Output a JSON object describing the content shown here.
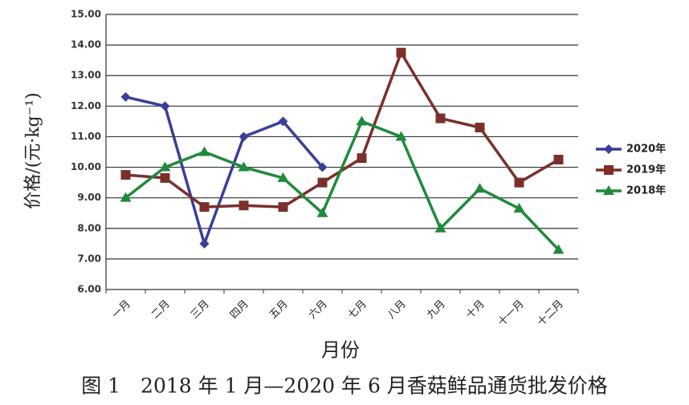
{
  "chart_data": {
    "type": "line",
    "ylabel": "价格/(元·kg⁻¹)",
    "xlabel": "月份",
    "caption": "图 1　2018 年 1 月—2020 年 6 月香菇鲜品通货批发价格",
    "categories": [
      "一月",
      "二月",
      "三月",
      "四月",
      "五月",
      "六月",
      "七月",
      "八月",
      "九月",
      "十月",
      "十一月",
      "十二月"
    ],
    "series": [
      {
        "name": "2020年",
        "color": "#3b3e98",
        "marker": "diamond",
        "values": [
          12.3,
          12.0,
          7.5,
          11.0,
          11.5,
          10.0,
          null,
          null,
          null,
          null,
          null,
          null
        ]
      },
      {
        "name": "2019年",
        "color": "#7b2f2b",
        "marker": "square",
        "values": [
          9.75,
          9.65,
          8.7,
          8.75,
          8.7,
          9.5,
          10.3,
          13.75,
          11.6,
          11.3,
          9.5,
          10.25
        ]
      },
      {
        "name": "2018年",
        "color": "#1f8a3c",
        "marker": "triangle",
        "values": [
          9.0,
          10.0,
          10.5,
          10.0,
          9.65,
          8.5,
          11.5,
          11.0,
          8.0,
          9.3,
          8.65,
          7.3
        ]
      }
    ],
    "ylim": [
      6,
      15
    ],
    "yticks": [
      {
        "value": 6,
        "label": "6.00"
      },
      {
        "value": 7,
        "label": "7.00"
      },
      {
        "value": 8,
        "label": "8.00"
      },
      {
        "value": 9,
        "label": "9.00"
      },
      {
        "value": 10,
        "label": "10.00"
      },
      {
        "value": 11,
        "label": "11.00"
      },
      {
        "value": 12,
        "label": "12.00"
      },
      {
        "value": 13,
        "label": "13.00"
      },
      {
        "value": 14,
        "label": "14.00"
      },
      {
        "value": 15,
        "label": "15.00"
      }
    ],
    "grid": true,
    "legend": "right"
  }
}
